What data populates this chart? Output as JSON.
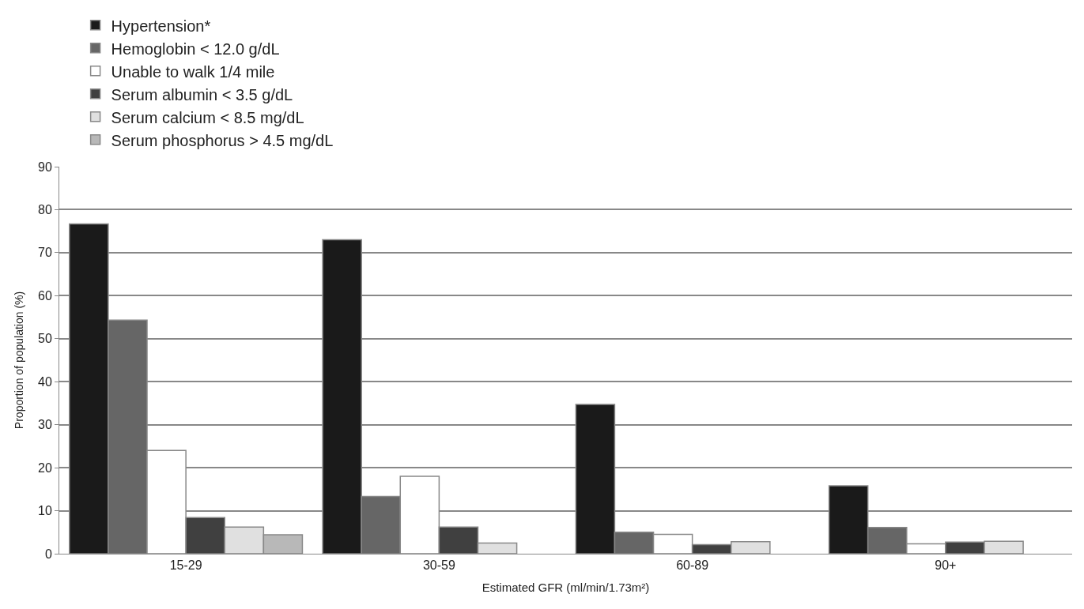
{
  "chart_data": {
    "type": "bar",
    "xlabel": "Estimated GFR (ml/min/1.73m²)",
    "ylabel": "Proportion of population (%)",
    "categories": [
      "15-29",
      "30-59",
      "60-89",
      "90+"
    ],
    "series": [
      {
        "name": "Hypertension*",
        "color": "#1a1a1a",
        "values": [
          76.7,
          73.0,
          34.7,
          15.8
        ]
      },
      {
        "name": "Hemoglobin < 12.0 g/dL",
        "color": "#666666",
        "values": [
          54.3,
          13.3,
          5.0,
          6.1
        ]
      },
      {
        "name": "Unable to walk 1/4 mile",
        "color": "#ffffff",
        "values": [
          24.0,
          18.0,
          4.5,
          2.3
        ]
      },
      {
        "name": "Serum albumin < 3.5 g/dL",
        "color": "#404040",
        "values": [
          8.4,
          6.2,
          2.1,
          2.7
        ]
      },
      {
        "name": "Serum calcium < 8.5 mg/dL",
        "color": "#e0e0e0",
        "values": [
          6.2,
          2.5,
          2.8,
          2.9
        ]
      },
      {
        "name": "Serum phosphorus > 4.5 mg/dL",
        "color": "#b8b8b8",
        "values": [
          4.4,
          null,
          null,
          null
        ]
      }
    ],
    "ylim": [
      0,
      90
    ],
    "yticks": [
      0,
      10,
      20,
      30,
      40,
      50,
      60,
      70,
      80,
      90
    ],
    "grid": "y",
    "legend": "top"
  }
}
